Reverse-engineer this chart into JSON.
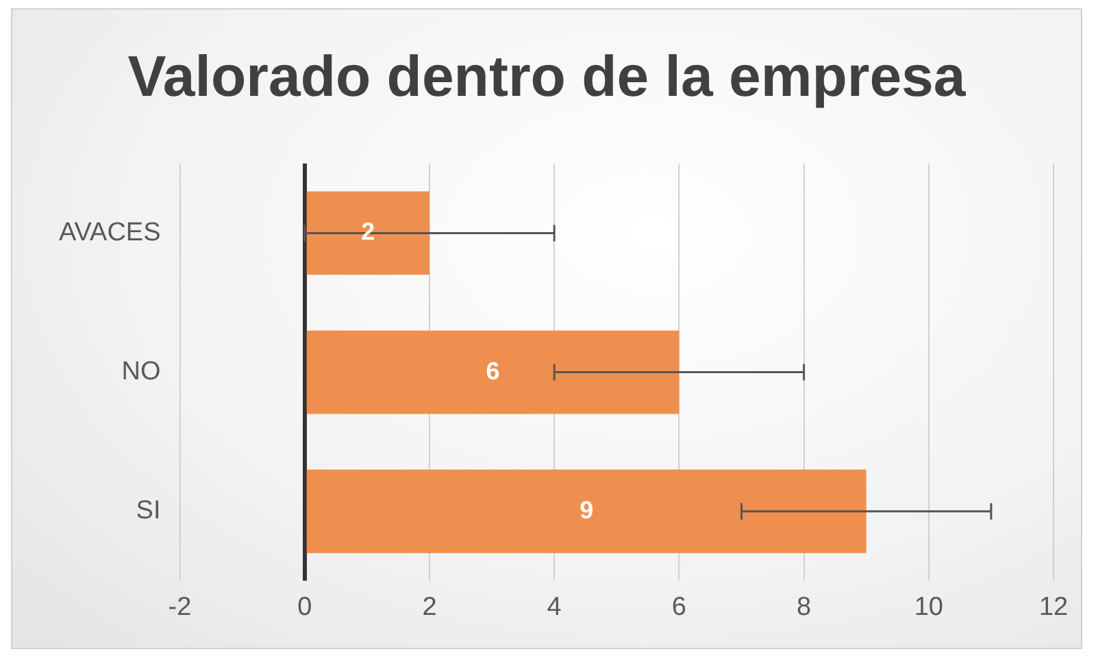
{
  "chart_data": {
    "type": "bar",
    "orientation": "horizontal",
    "title": "Valorado dentro de la empresa",
    "categories": [
      "AVACES",
      "NO",
      "SI"
    ],
    "values": [
      2,
      6,
      9
    ],
    "errors": [
      2,
      2,
      2
    ],
    "color": "#ef8f4f",
    "xlim": [
      -2,
      12
    ],
    "xticks": [
      -2,
      0,
      2,
      4,
      6,
      8,
      10,
      12
    ],
    "grid": "x",
    "data_labels": true,
    "legend": false
  }
}
